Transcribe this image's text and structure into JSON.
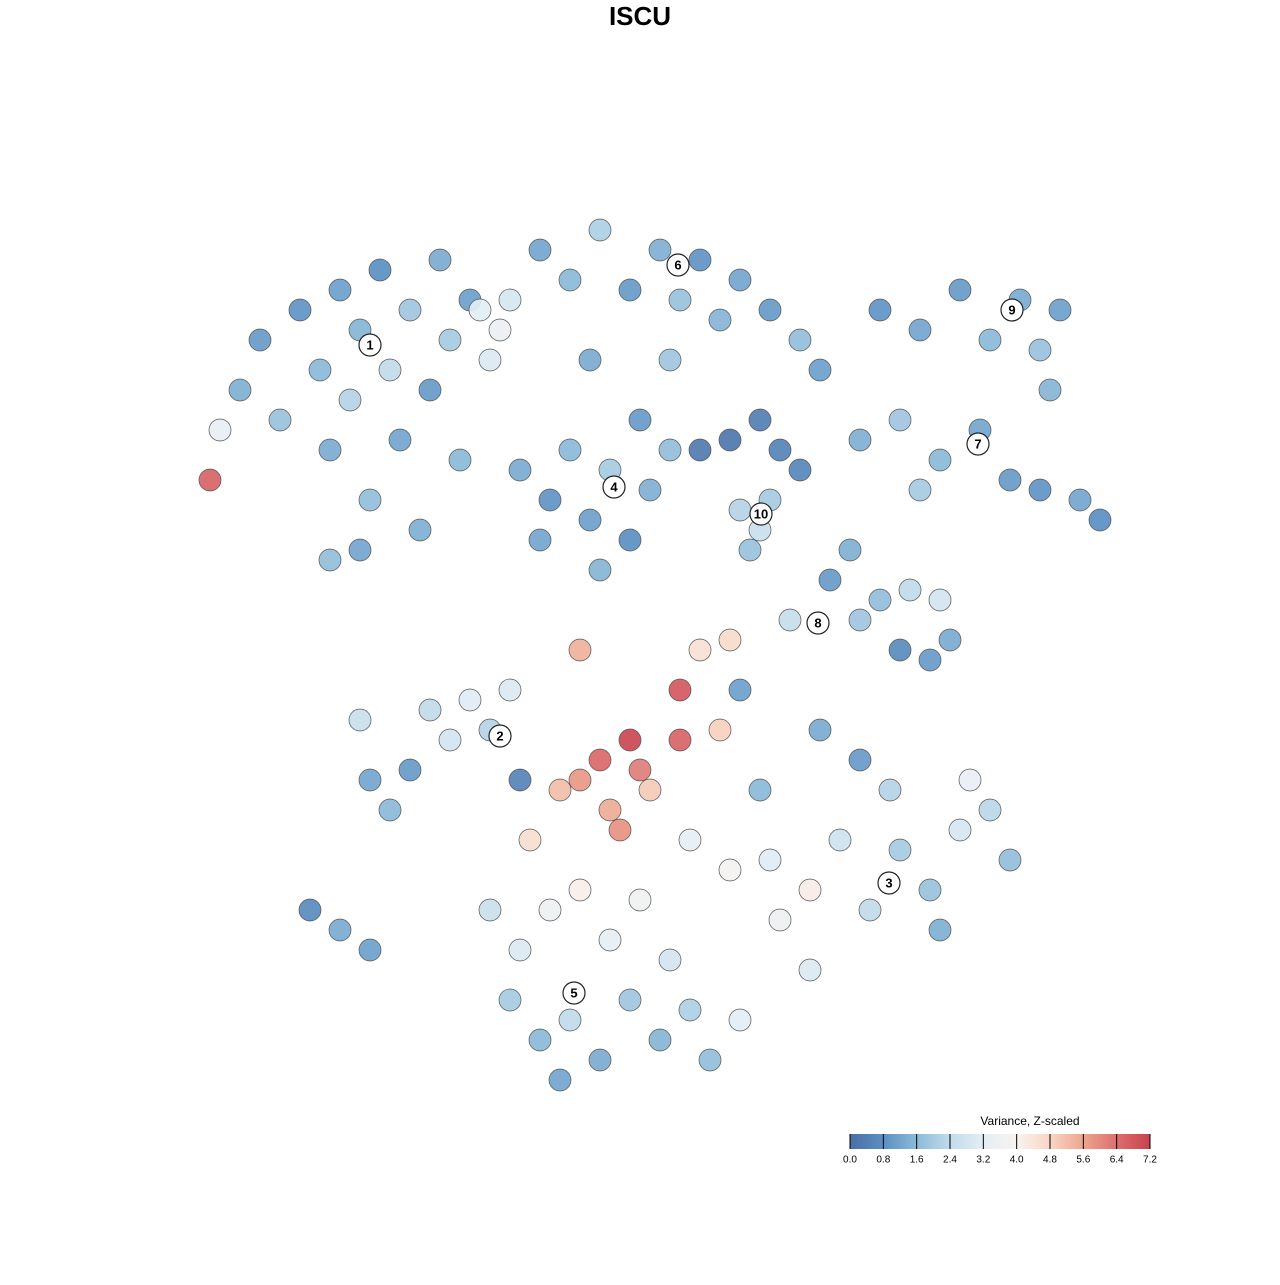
{
  "chart_data": {
    "type": "scatter",
    "title": "ISCU",
    "xlim": [
      -45,
      50
    ],
    "ylim": [
      -46,
      46
    ],
    "x": [
      -40,
      -38,
      -36,
      -34,
      -32,
      -31,
      -30,
      -29,
      -28,
      -27,
      -26,
      -25,
      -24,
      -23,
      -22,
      -21,
      -20,
      -19,
      -18,
      -17,
      -31,
      -28,
      -43,
      -42,
      -16,
      -14,
      -13,
      -15,
      -10,
      -7,
      -4,
      -1,
      2,
      4,
      6,
      8,
      10,
      13,
      16,
      -5,
      3,
      18,
      24,
      28,
      32,
      35,
      38,
      40,
      42,
      41,
      22,
      26,
      30,
      34,
      37,
      40,
      44,
      46,
      28,
      -12,
      -9,
      -7,
      -5,
      -3,
      -1,
      1,
      3,
      -10,
      -4,
      0,
      6,
      9,
      12,
      14,
      16,
      10,
      12,
      13,
      11,
      19,
      21,
      24,
      27,
      30,
      26,
      29,
      31,
      15,
      22,
      -27,
      -25,
      -23,
      -21,
      -19,
      -17,
      -15,
      -13,
      -28,
      -12,
      -33,
      -30,
      -27,
      -8,
      -6,
      -4,
      -3,
      -1,
      0,
      1,
      4,
      4,
      -6,
      8,
      -11,
      6,
      9,
      -2,
      5,
      9,
      13,
      17,
      14,
      20,
      23,
      26,
      29,
      32,
      35,
      37,
      30,
      17,
      12,
      18,
      22,
      25,
      10,
      33,
      -15,
      -12,
      -9,
      -6,
      -3,
      0,
      3,
      -13,
      -10,
      -7,
      -4,
      -1,
      2,
      5,
      7,
      10,
      -8
    ],
    "y": [
      25,
      30,
      22,
      33,
      27,
      19,
      35,
      24,
      31,
      14,
      37,
      27,
      20,
      33,
      11,
      25,
      38,
      30,
      18,
      34,
      8,
      9,
      16,
      21,
      33,
      31,
      34,
      28,
      39,
      36,
      41,
      35,
      39,
      34,
      38,
      32,
      36,
      33,
      30,
      28,
      28,
      27,
      33,
      31,
      35,
      30,
      34,
      29,
      33,
      25,
      20,
      22,
      18,
      21,
      16,
      15,
      14,
      12,
      15,
      17,
      14,
      19,
      12,
      17,
      10,
      15,
      19,
      10,
      7,
      22,
      19,
      20,
      22,
      19,
      17,
      13,
      11,
      14,
      9,
      6,
      9,
      4,
      5,
      4,
      -1,
      -2,
      0,
      2,
      2,
      -14,
      -17,
      -13,
      -7,
      -10,
      -6,
      -9,
      -5,
      -8,
      -14,
      -27,
      -29,
      -31,
      -15,
      -14,
      -12,
      -17,
      -10,
      -13,
      -15,
      -10,
      -5,
      -1,
      -9,
      -20,
      -1,
      0,
      -19,
      -20,
      -23,
      -22,
      -25,
      -28,
      -20,
      -27,
      -21,
      -25,
      -19,
      -17,
      -22,
      -29,
      -33,
      -15,
      -9,
      -12,
      -15,
      -5,
      -14,
      -27,
      -31,
      -27,
      -25,
      -30,
      -26,
      -32,
      -36,
      -40,
      -38,
      -42,
      -36,
      -40,
      -37,
      -42,
      -38,
      -44
    ],
    "values": [
      1.4,
      1.0,
      1.8,
      0.9,
      1.6,
      1.3,
      1.1,
      2.2,
      1.5,
      1.7,
      0.8,
      2.4,
      1.2,
      1.9,
      1.4,
      1.0,
      1.3,
      2.0,
      1.6,
      1.1,
      1.7,
      1.2,
      6.6,
      3.4,
      3.2,
      3.5,
      2.9,
      3.0,
      1.2,
      1.6,
      2.1,
      1.0,
      1.4,
      1.8,
      0.9,
      1.5,
      1.2,
      1.0,
      1.7,
      1.3,
      1.9,
      1.1,
      0.9,
      1.2,
      1.0,
      1.6,
      1.3,
      1.8,
      1.1,
      1.5,
      1.4,
      1.9,
      1.6,
      1.2,
      1.0,
      0.9,
      1.2,
      0.8,
      2.0,
      1.3,
      0.9,
      1.6,
      1.1,
      2.0,
      0.8,
      1.4,
      1.7,
      1.2,
      1.5,
      1.0,
      0.3,
      0.2,
      0.4,
      0.5,
      0.6,
      2.2,
      2.6,
      2.0,
      1.8,
      1.0,
      1.4,
      1.7,
      2.4,
      2.8,
      0.7,
      1.0,
      1.3,
      2.5,
      1.9,
      1.2,
      1.6,
      1.0,
      2.4,
      2.8,
      3.1,
      2.2,
      3.0,
      2.6,
      0.5,
      0.7,
      1.3,
      1.1,
      5.2,
      5.8,
      6.5,
      5.5,
      7.1,
      6.2,
      5.0,
      6.6,
      6.8,
      5.4,
      4.9,
      4.6,
      4.5,
      4.7,
      5.9,
      3.3,
      3.8,
      3.1,
      4.2,
      3.6,
      2.7,
      2.4,
      2.0,
      1.8,
      2.9,
      2.3,
      1.7,
      1.4,
      3.0,
      1.6,
      1.3,
      1.0,
      2.2,
      1.1,
      3.4,
      2.6,
      3.0,
      3.6,
      4.1,
      3.3,
      3.7,
      2.8,
      2.0,
      1.6,
      2.4,
      1.3,
      1.9,
      1.5,
      2.1,
      1.7,
      3.2,
      1.2
    ],
    "annotations": [
      {
        "text": "1",
        "x": -27,
        "y": 29.5
      },
      {
        "text": "6",
        "x": 3.8,
        "y": 37.5
      },
      {
        "text": "9",
        "x": 37.2,
        "y": 33
      },
      {
        "text": "7",
        "x": 33.8,
        "y": 19.6
      },
      {
        "text": "4",
        "x": -2.6,
        "y": 15.3
      },
      {
        "text": "10",
        "x": 12.1,
        "y": 12.6
      },
      {
        "text": "8",
        "x": 17.8,
        "y": 1.7
      },
      {
        "text": "2",
        "x": -14,
        "y": -9.6
      },
      {
        "text": "3",
        "x": 24.9,
        "y": -24.3
      },
      {
        "text": "5",
        "x": -6.6,
        "y": -35.3
      }
    ],
    "colorbar": {
      "title": "Variance, Z-scaled",
      "lim": [
        0,
        7.2
      ],
      "ticks": [
        {
          "value": 0,
          "label": "0.0"
        },
        0.8,
        1.6,
        2.4,
        3.2,
        {
          "value": 4,
          "label": "4.0"
        },
        4.8,
        5.6,
        6.4,
        7.2
      ],
      "colors": [
        "#4a6fa5",
        "#5b8fc2",
        "#8bbad9",
        "#c1dbea",
        "#e3eef5",
        "#f8f3ef",
        "#f8d6c5",
        "#eda58d",
        "#dc6f6e",
        "#c8424f"
      ]
    }
  }
}
